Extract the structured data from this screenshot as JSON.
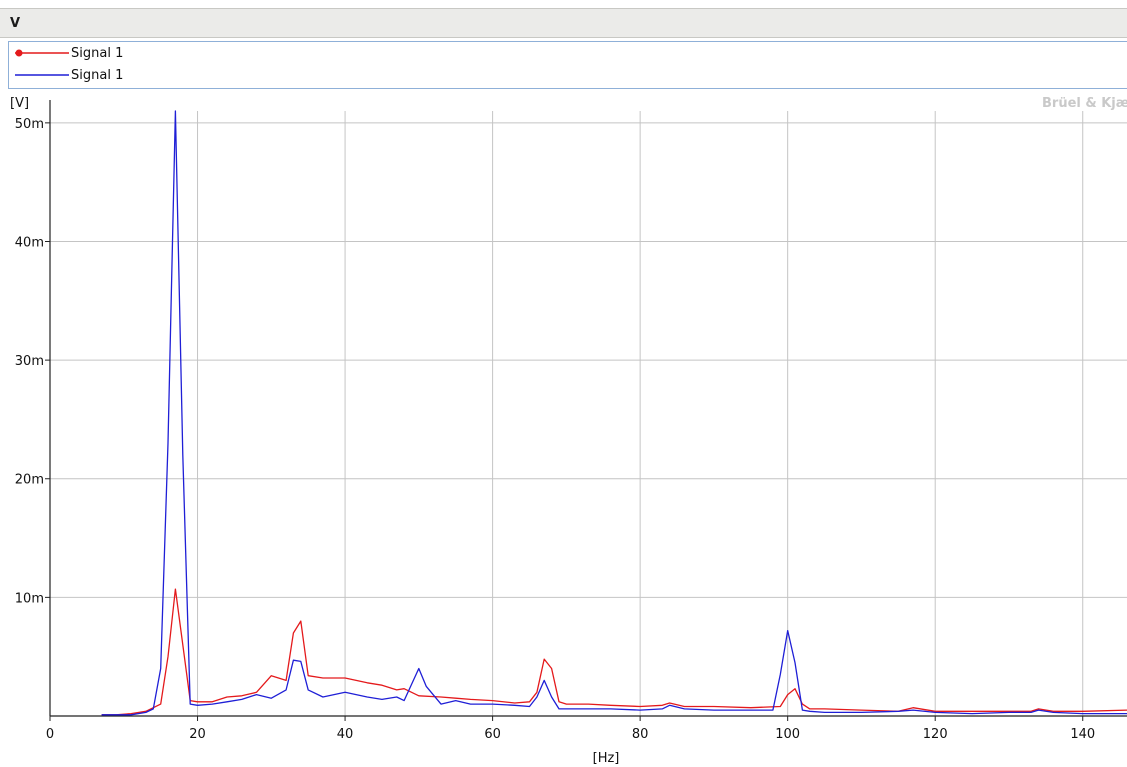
{
  "window": {
    "title": "V"
  },
  "legend": {
    "items": [
      {
        "label": "Signal 1",
        "color": "#e41a1c",
        "marker": "filled-circle"
      },
      {
        "label": "Signal 1",
        "color": "#1f1fd6",
        "marker": "none"
      }
    ]
  },
  "watermark": "Brüel & Kjær",
  "chart_data": {
    "type": "line",
    "xlabel": "[Hz]",
    "ylabel": "[V]",
    "xlim": [
      0,
      146
    ],
    "ylim": [
      0,
      51
    ],
    "grid": true,
    "legend_position": "top-left",
    "xticks": [
      0,
      20,
      40,
      60,
      80,
      100,
      120,
      140
    ],
    "xtick_labels": [
      "0",
      "20",
      "40",
      "60",
      "80",
      "100",
      "120",
      "140"
    ],
    "yticks": [
      10,
      20,
      30,
      40,
      50
    ],
    "ytick_labels": [
      "10m",
      "20m",
      "30m",
      "40m",
      "50m"
    ],
    "series": [
      {
        "name": "Signal 1",
        "color": "#e41a1c",
        "x": [
          7,
          9,
          11,
          13,
          14,
          15,
          16,
          17,
          18,
          19,
          20,
          22,
          24,
          26,
          28,
          30,
          32,
          33,
          34,
          35,
          37,
          40,
          43,
          45,
          47,
          48,
          50,
          53,
          55,
          57,
          60,
          63,
          65,
          66,
          67,
          68,
          69,
          70,
          73,
          76,
          80,
          83,
          84,
          86,
          90,
          95,
          99,
          100,
          101,
          102,
          103,
          105,
          110,
          115,
          117,
          120,
          125,
          130,
          133,
          134,
          136,
          140,
          146
        ],
        "values": [
          0.1,
          0.1,
          0.2,
          0.4,
          0.7,
          1.0,
          5.0,
          10.7,
          6.0,
          1.3,
          1.2,
          1.2,
          1.6,
          1.7,
          2.0,
          3.4,
          3.0,
          7.0,
          8.0,
          3.4,
          3.2,
          3.2,
          2.8,
          2.6,
          2.2,
          2.3,
          1.7,
          1.6,
          1.5,
          1.4,
          1.3,
          1.1,
          1.2,
          2.0,
          4.8,
          4.0,
          1.2,
          1.0,
          1.0,
          0.9,
          0.8,
          0.9,
          1.1,
          0.8,
          0.8,
          0.7,
          0.8,
          1.8,
          2.3,
          1.0,
          0.6,
          0.6,
          0.5,
          0.4,
          0.7,
          0.4,
          0.4,
          0.4,
          0.4,
          0.6,
          0.4,
          0.4,
          0.5
        ]
      },
      {
        "name": "Signal 1",
        "color": "#1f1fd6",
        "x": [
          7,
          9,
          11,
          13,
          14,
          15,
          16,
          17,
          18,
          19,
          20,
          22,
          24,
          26,
          28,
          30,
          32,
          33,
          34,
          35,
          37,
          40,
          43,
          45,
          47,
          48,
          50,
          51,
          53,
          55,
          57,
          60,
          63,
          65,
          66,
          67,
          68,
          69,
          70,
          73,
          76,
          80,
          83,
          84,
          86,
          90,
          95,
          98,
          99,
          100,
          101,
          102,
          103,
          105,
          110,
          115,
          117,
          120,
          125,
          130,
          133,
          134,
          136,
          140,
          146
        ],
        "values": [
          0.1,
          0.1,
          0.1,
          0.3,
          0.6,
          4.0,
          23.0,
          51.0,
          22.0,
          1.0,
          0.9,
          1.0,
          1.2,
          1.4,
          1.8,
          1.5,
          2.2,
          4.7,
          4.6,
          2.2,
          1.6,
          2.0,
          1.6,
          1.4,
          1.6,
          1.3,
          4.0,
          2.5,
          1.0,
          1.3,
          1.0,
          1.0,
          0.9,
          0.8,
          1.6,
          3.0,
          1.6,
          0.6,
          0.6,
          0.6,
          0.6,
          0.5,
          0.6,
          0.9,
          0.6,
          0.5,
          0.5,
          0.5,
          3.5,
          7.2,
          4.5,
          0.5,
          0.4,
          0.3,
          0.3,
          0.4,
          0.5,
          0.3,
          0.2,
          0.3,
          0.3,
          0.5,
          0.3,
          0.2,
          0.2
        ]
      }
    ]
  }
}
